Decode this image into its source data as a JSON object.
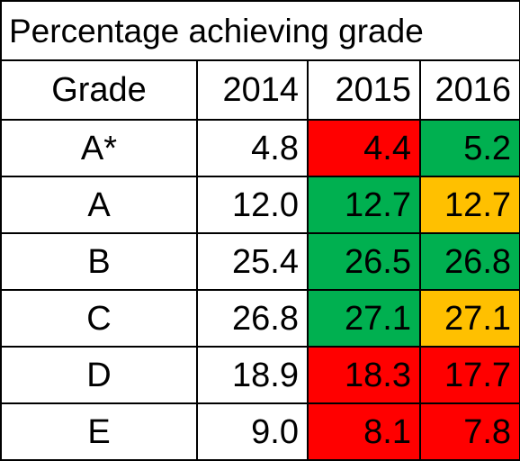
{
  "table": {
    "title": "Percentage achieving grade",
    "headers": [
      "Grade",
      "2014",
      "2015",
      "2016"
    ],
    "rows": [
      {
        "grade": "A*",
        "v2014": "4.8",
        "v2015": "4.4",
        "v2016": "5.2",
        "c2015": "#ff0000",
        "c2016": "#00b050"
      },
      {
        "grade": "A",
        "v2014": "12.0",
        "v2015": "12.7",
        "v2016": "12.7",
        "c2015": "#00b050",
        "c2016": "#ffc000"
      },
      {
        "grade": "B",
        "v2014": "25.4",
        "v2015": "26.5",
        "v2016": "26.8",
        "c2015": "#00b050",
        "c2016": "#00b050"
      },
      {
        "grade": "C",
        "v2014": "26.8",
        "v2015": "27.1",
        "v2016": "27.1",
        "c2015": "#00b050",
        "c2016": "#ffc000"
      },
      {
        "grade": "D",
        "v2014": "18.9",
        "v2015": "18.3",
        "v2016": "17.7",
        "c2015": "#ff0000",
        "c2016": "#ff0000"
      },
      {
        "grade": "E",
        "v2014": "9.0",
        "v2015": "8.1",
        "v2016": "7.8",
        "c2015": "#ff0000",
        "c2016": "#ff0000"
      }
    ]
  }
}
